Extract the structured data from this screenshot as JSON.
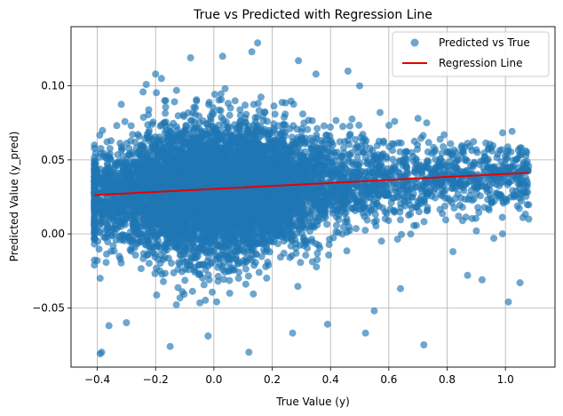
{
  "chart_data": {
    "type": "scatter",
    "title": "True vs Predicted with Regression Line",
    "xlabel": "True Value (y)",
    "ylabel": "Predicted Value (y_pred)",
    "xlim": [
      -0.49,
      1.17
    ],
    "ylim": [
      -0.09,
      0.14
    ],
    "x_ticks": [
      -0.4,
      -0.2,
      0.0,
      0.2,
      0.4,
      0.6,
      0.8,
      1.0
    ],
    "x_tick_labels": [
      "−0.4",
      "−0.2",
      "0.0",
      "0.2",
      "0.4",
      "0.6",
      "0.8",
      "1.0"
    ],
    "y_ticks": [
      -0.05,
      0.0,
      0.05,
      0.1
    ],
    "y_tick_labels": [
      "−0.05",
      "0.00",
      "0.05",
      "0.10"
    ],
    "grid": true,
    "legend_position": "top-right",
    "series": [
      {
        "name": "Predicted vs True",
        "kind": "scatter",
        "color": "#1f77b4",
        "alpha": 0.65,
        "dense_cloud": {
          "x_range": [
            -0.41,
            1.08
          ],
          "y_mean_at_x0": 0.0295,
          "slope": 0.0105,
          "y_spread": 0.021,
          "n_points": 7000
        },
        "outliers": [
          [
            -0.39,
            -0.081
          ],
          [
            -0.385,
            -0.08
          ],
          [
            -0.36,
            -0.062
          ],
          [
            -0.4,
            -0.018
          ],
          [
            -0.39,
            -0.03
          ],
          [
            -0.3,
            -0.06
          ],
          [
            -0.15,
            -0.076
          ],
          [
            -0.02,
            -0.069
          ],
          [
            0.12,
            -0.08
          ],
          [
            0.27,
            -0.067
          ],
          [
            0.39,
            -0.061
          ],
          [
            0.52,
            -0.067
          ],
          [
            0.55,
            -0.052
          ],
          [
            0.72,
            -0.075
          ],
          [
            0.64,
            -0.037
          ],
          [
            1.01,
            -0.046
          ],
          [
            1.05,
            -0.033
          ],
          [
            0.92,
            -0.031
          ],
          [
            0.87,
            -0.028
          ],
          [
            0.15,
            0.129
          ],
          [
            0.13,
            0.123
          ],
          [
            -0.08,
            0.119
          ],
          [
            0.29,
            0.117
          ],
          [
            0.46,
            0.11
          ],
          [
            -0.18,
            0.105
          ],
          [
            -0.2,
            0.108
          ],
          [
            0.35,
            0.108
          ],
          [
            0.5,
            0.1
          ],
          [
            0.03,
            0.12
          ],
          [
            1.05,
            0.058
          ],
          [
            1.07,
            0.056
          ],
          [
            0.95,
            0.058
          ],
          [
            0.83,
            0.055
          ],
          [
            0.79,
            0.067
          ],
          [
            0.57,
            0.082
          ],
          [
            0.62,
            0.076
          ],
          [
            0.7,
            0.078
          ],
          [
            0.73,
            0.075
          ],
          [
            1.08,
            0.01
          ],
          [
            1.06,
            0.011
          ],
          [
            0.99,
            0.0
          ],
          [
            0.96,
            -0.003
          ],
          [
            0.82,
            -0.012
          ],
          [
            0.9,
            0.002
          ]
        ]
      },
      {
        "name": "Regression Line",
        "kind": "line",
        "color": "#e60000",
        "x": [
          -0.41,
          1.08
        ],
        "y": [
          0.0262,
          0.0413
        ]
      }
    ]
  }
}
